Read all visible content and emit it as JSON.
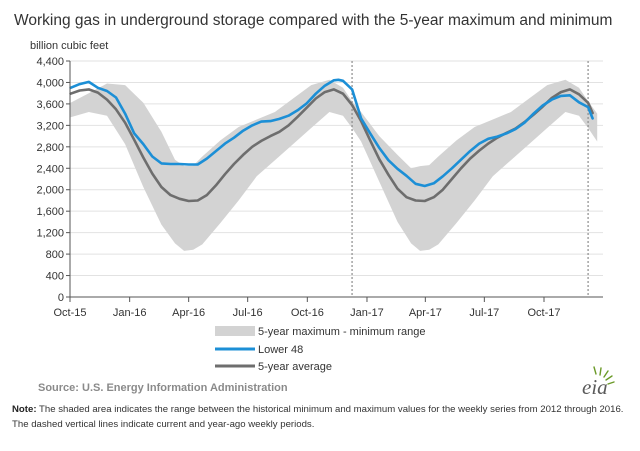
{
  "title": "Working gas in underground  storage compared with the 5-year maximum and minimum",
  "unit_label": "billion cubic feet",
  "source": "Source:  U.S. Energy Information Administration",
  "note": {
    "label": "Note:",
    "text": " The shaded area indicates the range between the historical minimum and maximum values for the weekly series from 2012 through 2016. The dashed vertical lines indicate current and year-ago weekly periods."
  },
  "logo_text": "eia",
  "colors": {
    "range": "#d3d3d3",
    "lower48": "#1c8fd6",
    "average": "#6e6e6e",
    "axis": "#555555",
    "dashed": "#8c8c8c"
  },
  "chart_data": {
    "type": "line",
    "title": "Working gas in underground  storage compared with the 5-year maximum and minimum",
    "ylabel": "billion cubic feet",
    "ylim": [
      0,
      4400
    ],
    "yticks": [
      0,
      400,
      800,
      1200,
      1600,
      2000,
      2400,
      2800,
      3200,
      3600,
      4000,
      4400
    ],
    "ytick_labels": [
      "0",
      "400",
      "800",
      "1,200",
      "1,600",
      "2,000",
      "2,400",
      "2,800",
      "3,200",
      "3,600",
      "4,000",
      "4,400"
    ],
    "xlim": [
      "2015-10-01",
      "2017-12-31"
    ],
    "xticks": [
      "2015-10-01",
      "2016-01-01",
      "2016-04-01",
      "2016-07-01",
      "2016-10-01",
      "2017-01-01",
      "2017-04-01",
      "2017-07-01",
      "2017-10-01"
    ],
    "xtick_labels": [
      "Oct-15",
      "Jan-16",
      "Apr-16",
      "Jul-16",
      "Oct-16",
      "Jan-17",
      "Apr-17",
      "Jul-17",
      "Oct-17"
    ],
    "grid": "horizontal",
    "legend_position": "bottom",
    "dashed_vlines": [
      "2016-12-09",
      "2017-12-08"
    ],
    "range_series": {
      "name": "5-year maximum - minimum range",
      "x": [
        "2015-10-02",
        "2015-10-30",
        "2015-11-27",
        "2015-12-25",
        "2016-01-22",
        "2016-02-19",
        "2016-03-11",
        "2016-03-25",
        "2016-04-08",
        "2016-04-22",
        "2016-05-20",
        "2016-06-17",
        "2016-07-15",
        "2016-08-12",
        "2016-09-09",
        "2016-10-07",
        "2016-11-04",
        "2016-11-25",
        "2016-12-09",
        "2016-12-23",
        "2017-01-20",
        "2017-02-17",
        "2017-03-10",
        "2017-03-24",
        "2017-04-07",
        "2017-04-21",
        "2017-05-19",
        "2017-06-16",
        "2017-07-14",
        "2017-08-11",
        "2017-09-08",
        "2017-10-06",
        "2017-11-03",
        "2017-11-24",
        "2017-12-08",
        "2017-12-22"
      ],
      "max": [
        3620,
        3800,
        3980,
        3950,
        3620,
        3080,
        2560,
        2440,
        2450,
        2620,
        2920,
        3170,
        3310,
        3450,
        3700,
        3950,
        4050,
        3900,
        3650,
        3450,
        3000,
        2650,
        2400,
        2440,
        2460,
        2620,
        2920,
        3170,
        3310,
        3450,
        3700,
        3950,
        4050,
        3900,
        3650,
        3420
      ],
      "min": [
        3350,
        3450,
        3380,
        2850,
        2050,
        1350,
        1000,
        860,
        880,
        980,
        1380,
        1800,
        2250,
        2550,
        2850,
        3150,
        3450,
        3380,
        3150,
        2900,
        2150,
        1400,
        1000,
        860,
        880,
        980,
        1380,
        1800,
        2250,
        2550,
        2850,
        3150,
        3450,
        3380,
        3150,
        2900
      ]
    },
    "series": [
      {
        "name": "Lower 48",
        "x": [
          "2015-10-02",
          "2015-10-16",
          "2015-10-30",
          "2015-11-13",
          "2015-11-27",
          "2015-12-11",
          "2015-12-25",
          "2016-01-08",
          "2016-01-22",
          "2016-02-05",
          "2016-02-19",
          "2016-03-04",
          "2016-03-18",
          "2016-04-01",
          "2016-04-15",
          "2016-04-29",
          "2016-05-13",
          "2016-05-27",
          "2016-06-10",
          "2016-06-24",
          "2016-07-08",
          "2016-07-22",
          "2016-08-05",
          "2016-08-19",
          "2016-09-02",
          "2016-09-16",
          "2016-09-30",
          "2016-10-14",
          "2016-10-28",
          "2016-11-11",
          "2016-11-18",
          "2016-11-25",
          "2016-12-09",
          "2016-12-23",
          "2017-01-06",
          "2017-01-20",
          "2017-02-03",
          "2017-02-17",
          "2017-03-03",
          "2017-03-17",
          "2017-03-31",
          "2017-04-14",
          "2017-04-28",
          "2017-05-12",
          "2017-05-26",
          "2017-06-09",
          "2017-06-23",
          "2017-07-07",
          "2017-07-21",
          "2017-08-04",
          "2017-08-18",
          "2017-09-01",
          "2017-09-15",
          "2017-09-29",
          "2017-10-13",
          "2017-10-27",
          "2017-11-10",
          "2017-11-24",
          "2017-12-08",
          "2017-12-15"
        ],
        "values": [
          3900,
          3970,
          4010,
          3900,
          3840,
          3720,
          3420,
          3050,
          2850,
          2620,
          2490,
          2480,
          2480,
          2470,
          2470,
          2580,
          2720,
          2860,
          2970,
          3100,
          3200,
          3270,
          3280,
          3320,
          3380,
          3480,
          3610,
          3790,
          3940,
          4040,
          4050,
          4030,
          3870,
          3330,
          3050,
          2780,
          2550,
          2390,
          2260,
          2110,
          2070,
          2120,
          2250,
          2400,
          2560,
          2720,
          2860,
          2950,
          2990,
          3050,
          3130,
          3250,
          3420,
          3570,
          3680,
          3750,
          3760,
          3630,
          3540,
          3330
        ]
      },
      {
        "name": "5-year average",
        "x": [
          "2015-10-02",
          "2015-10-16",
          "2015-10-30",
          "2015-11-13",
          "2015-11-27",
          "2015-12-11",
          "2015-12-25",
          "2016-01-08",
          "2016-01-22",
          "2016-02-05",
          "2016-02-19",
          "2016-03-04",
          "2016-03-18",
          "2016-04-01",
          "2016-04-15",
          "2016-04-29",
          "2016-05-13",
          "2016-05-27",
          "2016-06-10",
          "2016-06-24",
          "2016-07-08",
          "2016-07-22",
          "2016-08-05",
          "2016-08-19",
          "2016-09-02",
          "2016-09-16",
          "2016-09-30",
          "2016-10-14",
          "2016-10-28",
          "2016-11-11",
          "2016-11-25",
          "2016-12-09",
          "2016-12-23",
          "2017-01-06",
          "2017-01-20",
          "2017-02-03",
          "2017-02-17",
          "2017-03-03",
          "2017-03-17",
          "2017-03-31",
          "2017-04-14",
          "2017-04-28",
          "2017-05-12",
          "2017-05-26",
          "2017-06-09",
          "2017-06-23",
          "2017-07-07",
          "2017-07-21",
          "2017-08-04",
          "2017-08-18",
          "2017-09-01",
          "2017-09-15",
          "2017-09-29",
          "2017-10-13",
          "2017-10-27",
          "2017-11-10",
          "2017-11-24",
          "2017-12-08",
          "2017-12-15"
        ],
        "values": [
          3790,
          3850,
          3870,
          3810,
          3680,
          3500,
          3250,
          2930,
          2600,
          2300,
          2050,
          1900,
          1830,
          1790,
          1800,
          1900,
          2080,
          2290,
          2480,
          2650,
          2800,
          2910,
          3000,
          3080,
          3200,
          3360,
          3530,
          3700,
          3820,
          3870,
          3790,
          3580,
          3280,
          2920,
          2570,
          2280,
          2020,
          1860,
          1800,
          1790,
          1860,
          2000,
          2200,
          2400,
          2580,
          2730,
          2860,
          2970,
          3060,
          3140,
          3260,
          3400,
          3550,
          3710,
          3820,
          3870,
          3780,
          3620,
          3430
        ]
      }
    ]
  }
}
